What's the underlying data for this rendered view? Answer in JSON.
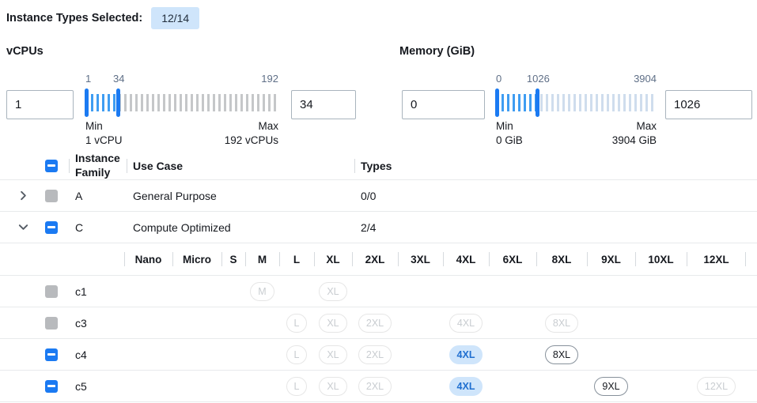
{
  "header": {
    "label": "Instance Types Selected:",
    "badge": "12/14"
  },
  "filters": {
    "vcpus": {
      "label": "vCPUs",
      "min_value": "1",
      "max_value": "34",
      "scale_start": "1",
      "scale_current": "34",
      "scale_end": "192",
      "min_caption": "Min",
      "min_sub": "1 vCPU",
      "max_caption": "Max",
      "max_sub": "192 vCPUs",
      "range_pct": 17.3
    },
    "memory": {
      "label": "Memory (GiB)",
      "min_value": "0",
      "max_value": "1026",
      "scale_start": "0",
      "scale_current": "1026",
      "scale_end": "3904",
      "min_caption": "Min",
      "min_sub": "0 GiB",
      "max_caption": "Max",
      "max_sub": "3904 GiB",
      "range_pct": 26.3
    }
  },
  "table": {
    "columns": {
      "family": "Instance Family",
      "use_case": "Use Case",
      "types": "Types"
    },
    "size_columns": [
      "Nano",
      "Micro",
      "S",
      "M",
      "L",
      "XL",
      "2XL",
      "3XL",
      "4XL",
      "6XL",
      "8XL",
      "9XL",
      "10XL",
      "12XL"
    ],
    "families": [
      {
        "name": "A",
        "use_case": "General Purpose",
        "types": "0/0",
        "expanded": false,
        "checkbox": "disabled",
        "instances": []
      },
      {
        "name": "C",
        "use_case": "Compute Optimized",
        "types": "2/4",
        "expanded": true,
        "checkbox": "indeterminate",
        "instances": [
          {
            "name": "c1",
            "checkbox": "disabled",
            "sizes": {
              "M": "disabled",
              "XL": "disabled"
            }
          },
          {
            "name": "c3",
            "checkbox": "disabled",
            "sizes": {
              "L": "disabled",
              "XL": "disabled",
              "2XL": "disabled",
              "4XL": "disabled",
              "8XL": "disabled"
            }
          },
          {
            "name": "c4",
            "checkbox": "indeterminate",
            "sizes": {
              "L": "disabled",
              "XL": "disabled",
              "2XL": "disabled",
              "4XL": "selected",
              "8XL": "available"
            }
          },
          {
            "name": "c5",
            "checkbox": "indeterminate",
            "sizes": {
              "L": "disabled",
              "XL": "disabled",
              "2XL": "disabled",
              "4XL": "selected",
              "9XL": "available",
              "12XL": "disabled"
            }
          }
        ]
      }
    ]
  },
  "colors": {
    "accent_blue": "#1b7af2",
    "tick_selected": "#3f9df2",
    "tick_unselected_vcpus": "#c5c7c9",
    "tick_unselected_memory": "#cfdded",
    "badge_bg": "#cfe5fb",
    "pill_selected_bg": "#cfe5fb",
    "pill_selected_text": "#1f6fd0",
    "checkbox_disabled": "#b8babd"
  }
}
